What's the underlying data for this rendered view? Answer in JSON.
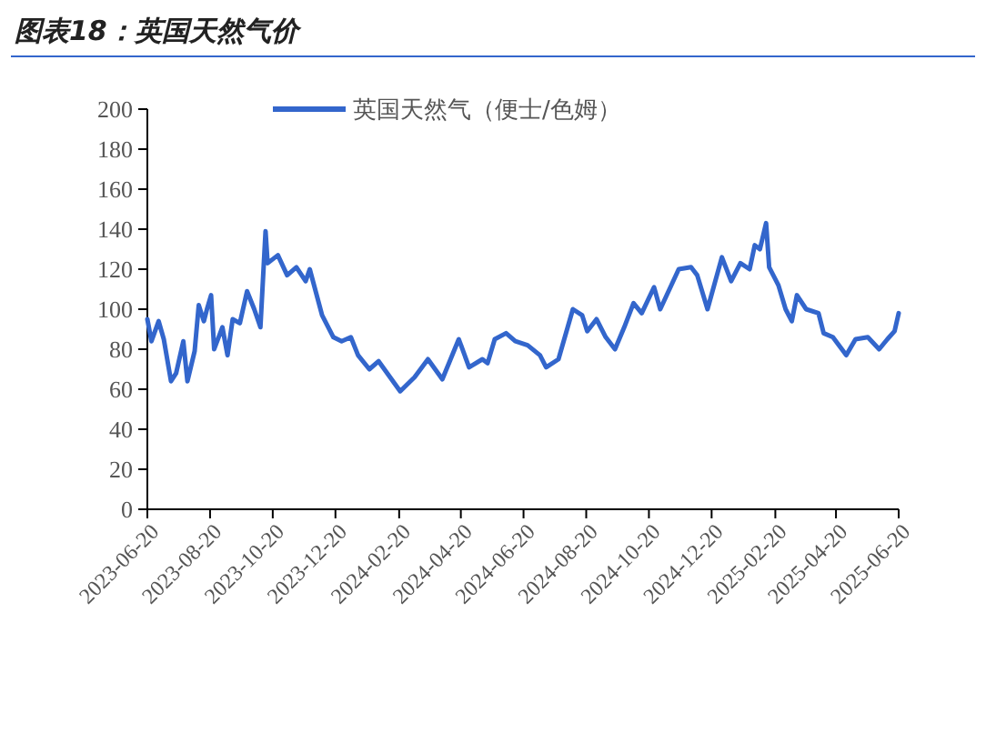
{
  "chart_data": {
    "type": "line",
    "title": "图表18：英国天然气价",
    "legend": "top",
    "grid": false,
    "ylim": [
      0,
      200
    ],
    "yticks": [
      0,
      20,
      40,
      60,
      80,
      100,
      120,
      140,
      160,
      180,
      200
    ],
    "xlim": [
      "2023-06-20",
      "2025-06-20"
    ],
    "xticks": [
      "2023-06-20",
      "2023-08-20",
      "2023-10-20",
      "2023-12-20",
      "2024-02-20",
      "2024-04-20",
      "2024-06-20",
      "2024-08-20",
      "2024-10-20",
      "2024-12-20",
      "2025-02-20",
      "2025-04-20",
      "2025-06-20"
    ],
    "x": [
      "2023-06-20",
      "2023-06-24",
      "2023-07-01",
      "2023-07-06",
      "2023-07-13",
      "2023-07-18",
      "2023-07-25",
      "2023-07-29",
      "2023-08-05",
      "2023-08-09",
      "2023-08-14",
      "2023-08-17",
      "2023-08-21",
      "2023-08-24",
      "2023-09-01",
      "2023-09-06",
      "2023-09-11",
      "2023-09-18",
      "2023-09-25",
      "2023-10-02",
      "2023-10-08",
      "2023-10-13",
      "2023-10-15",
      "2023-10-25",
      "2023-11-03",
      "2023-11-12",
      "2023-11-21",
      "2023-11-25",
      "2023-12-07",
      "2023-12-18",
      "2023-12-26",
      "2024-01-04",
      "2024-01-11",
      "2024-01-22",
      "2024-01-31",
      "2024-02-21",
      "2024-03-06",
      "2024-03-19",
      "2024-04-02",
      "2024-04-18",
      "2024-04-28",
      "2024-05-11",
      "2024-05-16",
      "2024-05-23",
      "2024-06-03",
      "2024-06-12",
      "2024-06-24",
      "2024-07-06",
      "2024-07-12",
      "2024-07-24",
      "2024-08-07",
      "2024-08-16",
      "2024-08-21",
      "2024-08-30",
      "2024-09-08",
      "2024-09-17",
      "2024-09-26",
      "2024-10-05",
      "2024-10-13",
      "2024-10-25",
      "2024-10-31",
      "2024-11-18",
      "2024-11-30",
      "2024-12-06",
      "2024-12-16",
      "2024-12-30",
      "2025-01-08",
      "2025-01-17",
      "2025-01-26",
      "2025-01-31",
      "2025-02-05",
      "2025-02-11",
      "2025-02-14",
      "2025-02-23",
      "2025-03-02",
      "2025-03-08",
      "2025-03-13",
      "2025-03-22",
      "2025-04-03",
      "2025-04-08",
      "2025-04-17",
      "2025-04-30",
      "2025-05-09",
      "2025-05-21",
      "2025-06-01",
      "2025-06-09",
      "2025-06-16",
      "2025-06-20"
    ],
    "series": [
      {
        "name": "英国天然气（便士/色姆）",
        "color": "#3366cc",
        "values": [
          95,
          84,
          94,
          85,
          64,
          68,
          84,
          64,
          79,
          102,
          94,
          100,
          107,
          80,
          91,
          77,
          95,
          93,
          109,
          100,
          91,
          139,
          123,
          127,
          117,
          121,
          114,
          120,
          97,
          86,
          84,
          86,
          77,
          70,
          74,
          59,
          66,
          75,
          65,
          85,
          71,
          75,
          73,
          85,
          88,
          84,
          82,
          77,
          71,
          75,
          100,
          97,
          89,
          95,
          86,
          80,
          91,
          103,
          98,
          111,
          100,
          120,
          121,
          117,
          100,
          126,
          114,
          123,
          120,
          132,
          130,
          143,
          121,
          112,
          100,
          94,
          107,
          100,
          98,
          88,
          86,
          77,
          85,
          86,
          80,
          85,
          89,
          98
        ]
      }
    ]
  }
}
